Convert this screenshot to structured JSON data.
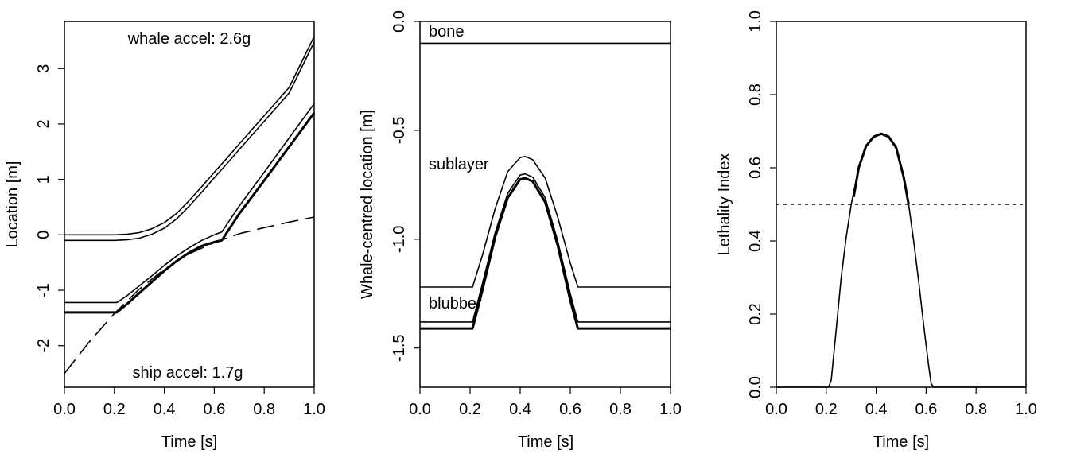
{
  "chart_data": [
    {
      "type": "line",
      "xlabel": "Time [s]",
      "ylabel": "Location [m]",
      "xlim": [
        0.0,
        1.0
      ],
      "ylim": [
        -2.75,
        3.85
      ],
      "x_ticks": [
        0.0,
        0.2,
        0.4,
        0.6,
        0.8,
        1.0
      ],
      "x_tick_labels": [
        "0.0",
        "0.2",
        "0.4",
        "0.6",
        "0.8",
        "1.0"
      ],
      "y_ticks": [
        -2,
        -1,
        0,
        1,
        2,
        3
      ],
      "y_tick_labels": [
        "-2",
        "-1",
        "0",
        "1",
        "2",
        "3"
      ],
      "annotations": [
        "whale accel: 2.6g",
        "ship accel: 1.7g"
      ],
      "series": [
        {
          "style": "solid",
          "width": "thin",
          "x": [
            0,
            0.1,
            0.2,
            0.25,
            0.3,
            0.35,
            0.4,
            0.45,
            0.5,
            0.55,
            0.6,
            0.65,
            0.7,
            0.8,
            0.9,
            1.0
          ],
          "y": [
            0.0,
            0.0,
            0.0,
            0.01,
            0.04,
            0.11,
            0.22,
            0.39,
            0.62,
            0.87,
            1.13,
            1.38,
            1.64,
            2.15,
            2.66,
            3.58
          ]
        },
        {
          "style": "solid",
          "width": "thin",
          "x": [
            0,
            0.1,
            0.2,
            0.25,
            0.3,
            0.35,
            0.4,
            0.45,
            0.5,
            0.55,
            0.6,
            0.65,
            0.7,
            0.8,
            0.9,
            1.0
          ],
          "y": [
            -0.1,
            -0.1,
            -0.1,
            -0.09,
            -0.06,
            0.01,
            0.12,
            0.29,
            0.52,
            0.77,
            1.03,
            1.28,
            1.54,
            2.05,
            2.56,
            3.48
          ]
        },
        {
          "style": "solid",
          "width": "thin",
          "x": [
            0,
            0.21,
            0.25,
            0.3,
            0.35,
            0.4,
            0.45,
            0.5,
            0.55,
            0.6,
            0.63,
            0.7,
            0.8,
            0.9,
            1.0
          ],
          "y": [
            -1.22,
            -1.22,
            -1.1,
            -0.92,
            -0.74,
            -0.55,
            -0.38,
            -0.23,
            -0.1,
            0.0,
            0.05,
            0.52,
            1.13,
            1.75,
            2.37
          ]
        },
        {
          "style": "solid",
          "width": "thick",
          "x": [
            0,
            0.21,
            0.25,
            0.3,
            0.35,
            0.4,
            0.45,
            0.5,
            0.55,
            0.6,
            0.63,
            0.7,
            0.8,
            0.9,
            1.0
          ],
          "y": [
            -1.4,
            -1.4,
            -1.25,
            -1.05,
            -0.85,
            -0.65,
            -0.47,
            -0.32,
            -0.2,
            -0.13,
            -0.1,
            0.38,
            0.98,
            1.59,
            2.2
          ]
        },
        {
          "style": "dashed",
          "width": "thin",
          "x": [
            0,
            0.1,
            0.2,
            0.3,
            0.4,
            0.5,
            0.6,
            0.7,
            0.8,
            0.9,
            1.0
          ],
          "y": [
            -2.5,
            -1.93,
            -1.42,
            -0.98,
            -0.62,
            -0.34,
            -0.14,
            0.02,
            0.13,
            0.23,
            0.32
          ]
        }
      ]
    },
    {
      "type": "line",
      "xlabel": "Time [s]",
      "ylabel": "Whale-centred location [m]",
      "xlim": [
        0.0,
        1.0
      ],
      "ylim": [
        -1.68,
        0.0
      ],
      "x_ticks": [
        0.0,
        0.2,
        0.4,
        0.6,
        0.8,
        1.0
      ],
      "x_tick_labels": [
        "0.0",
        "0.2",
        "0.4",
        "0.6",
        "0.8",
        "1.0"
      ],
      "y_ticks": [
        0.0,
        -0.5,
        -1.0,
        -1.5
      ],
      "y_tick_labels": [
        "0.0",
        "-0.5",
        "-1.0",
        "-1.5"
      ],
      "annotations": [
        "bone",
        "sublayer",
        "blubber"
      ],
      "series": [
        {
          "style": "solid",
          "width": "thin",
          "x": [
            0,
            1.0
          ],
          "y": [
            -0.1,
            -0.1
          ]
        },
        {
          "style": "solid",
          "width": "thin",
          "x": [
            0,
            0.21,
            0.25,
            0.3,
            0.35,
            0.4,
            0.42,
            0.45,
            0.5,
            0.55,
            0.6,
            0.63,
            1.0
          ],
          "y": [
            -1.22,
            -1.22,
            -1.07,
            -0.86,
            -0.69,
            -0.625,
            -0.62,
            -0.635,
            -0.72,
            -0.9,
            -1.11,
            -1.22,
            -1.22
          ]
        },
        {
          "style": "solid",
          "width": "thin",
          "x": [
            0,
            0.21,
            0.25,
            0.3,
            0.35,
            0.4,
            0.42,
            0.45,
            0.5,
            0.55,
            0.6,
            0.63,
            1.0
          ],
          "y": [
            -1.38,
            -1.38,
            -1.2,
            -0.97,
            -0.79,
            -0.705,
            -0.7,
            -0.715,
            -0.81,
            -1.01,
            -1.25,
            -1.38,
            -1.38
          ]
        },
        {
          "style": "solid",
          "width": "thick",
          "x": [
            0,
            0.21,
            0.25,
            0.3,
            0.35,
            0.4,
            0.42,
            0.45,
            0.5,
            0.55,
            0.6,
            0.63,
            1.0
          ],
          "y": [
            -1.41,
            -1.41,
            -1.23,
            -0.99,
            -0.81,
            -0.725,
            -0.72,
            -0.735,
            -0.83,
            -1.03,
            -1.28,
            -1.41,
            -1.41
          ]
        }
      ]
    },
    {
      "type": "line",
      "xlabel": "Time [s]",
      "ylabel": "Lethality Index",
      "xlim": [
        0.0,
        1.0
      ],
      "ylim": [
        0.0,
        1.0
      ],
      "x_ticks": [
        0.0,
        0.2,
        0.4,
        0.6,
        0.8,
        1.0
      ],
      "x_tick_labels": [
        "0.0",
        "0.2",
        "0.4",
        "0.6",
        "0.8",
        "1.0"
      ],
      "y_ticks": [
        0.0,
        0.2,
        0.4,
        0.6,
        0.8,
        1.0
      ],
      "y_tick_labels": [
        "0.0",
        "0.2",
        "0.4",
        "0.6",
        "0.8",
        "1.0"
      ],
      "threshold": 0.5,
      "series": [
        {
          "style": "solid",
          "width": "thin",
          "x": [
            0,
            0.21,
            0.22,
            0.24,
            0.26,
            0.28,
            0.3,
            0.33,
            0.36,
            0.39,
            0.42,
            0.45,
            0.48,
            0.51,
            0.53,
            0.55,
            0.57,
            0.59,
            0.61,
            0.62,
            0.63,
            1.0
          ],
          "y": [
            0,
            0,
            0.02,
            0.16,
            0.3,
            0.41,
            0.5,
            0.6,
            0.66,
            0.685,
            0.693,
            0.685,
            0.655,
            0.575,
            0.5,
            0.4,
            0.29,
            0.17,
            0.06,
            0.01,
            0,
            0
          ]
        },
        {
          "style": "solid",
          "width": "thick",
          "x": [
            0.31,
            0.33,
            0.36,
            0.39,
            0.42,
            0.45,
            0.48,
            0.51,
            0.53
          ],
          "y": [
            0.52,
            0.6,
            0.66,
            0.685,
            0.693,
            0.685,
            0.655,
            0.575,
            0.5
          ]
        },
        {
          "style": "dotted",
          "width": "thin",
          "x": [
            0,
            1.0
          ],
          "y": [
            0.5,
            0.5
          ]
        }
      ]
    }
  ]
}
